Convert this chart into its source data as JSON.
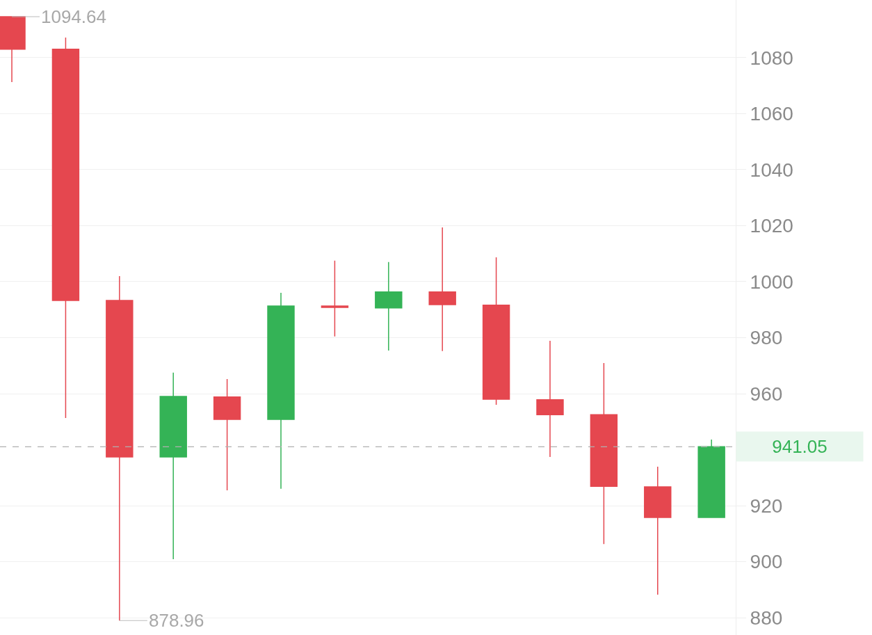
{
  "chart_data": {
    "type": "candlestick",
    "categories": [
      null,
      null,
      null,
      null,
      null,
      null,
      null,
      null,
      null,
      null,
      null,
      null,
      null,
      null
    ],
    "ohlc": [
      [
        1094.64,
        1094.64,
        1071.3,
        1083.0
      ],
      [
        1083.0,
        1087.2,
        951.3,
        993.3
      ],
      [
        993.3,
        1002.0,
        878.96,
        937.4
      ],
      [
        937.4,
        967.5,
        900.9,
        959.0
      ],
      [
        958.8,
        965.2,
        925.5,
        950.8
      ],
      [
        950.8,
        996.0,
        926.0,
        991.3
      ],
      [
        991.3,
        1007.5,
        980.4,
        990.8
      ],
      [
        990.6,
        1007.0,
        975.4,
        996.3
      ],
      [
        996.3,
        1019.4,
        975.2,
        991.8
      ],
      [
        991.6,
        1008.7,
        956.0,
        958.0
      ],
      [
        957.8,
        978.9,
        937.4,
        952.5
      ],
      [
        952.5,
        970.9,
        906.3,
        926.9
      ],
      [
        926.7,
        933.9,
        888.2,
        915.8
      ],
      [
        915.8,
        943.6,
        915.8,
        941.05
      ]
    ],
    "colors": [
      "#e5474f",
      "#e5474f",
      "#e5474f",
      "#34b356",
      "#e5474f",
      "#34b356",
      "#e5474f",
      "#34b356",
      "#e5474f",
      "#e5474f",
      "#e5474f",
      "#e5474f",
      "#e5474f",
      "#34b356"
    ],
    "ylim": [
      873.8,
      1100.6
    ],
    "yticks": [
      880,
      900,
      920,
      960,
      980,
      1000,
      1020,
      1040,
      1060,
      1080
    ],
    "ref_lines": [
      {
        "axis": "y",
        "value": 941.05,
        "label": "941.05",
        "color": "#b0b0b0",
        "line_style": "dashed"
      }
    ],
    "annotations": [
      "1094.64",
      "878.96"
    ],
    "grid": "y"
  }
}
